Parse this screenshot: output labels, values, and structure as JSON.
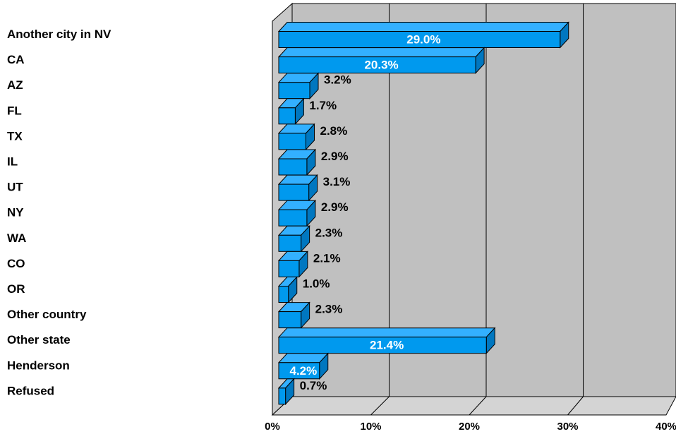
{
  "chart_data": {
    "type": "bar",
    "orientation": "horizontal",
    "three_d": true,
    "categories": [
      "Another city in NV",
      "CA",
      "AZ",
      "FL",
      "TX",
      "IL",
      "UT",
      "NY",
      "WA",
      "CO",
      "OR",
      "Other country",
      "Other state",
      "Henderson",
      "Refused"
    ],
    "values": [
      29.0,
      20.3,
      3.2,
      1.7,
      2.8,
      2.9,
      3.1,
      2.9,
      2.3,
      2.1,
      1.0,
      2.3,
      21.4,
      4.2,
      0.7
    ],
    "data_labels": [
      "29.0%",
      "20.3%",
      "3.2%",
      "1.7%",
      "2.8%",
      "2.9%",
      "3.1%",
      "2.9%",
      "2.3%",
      "2.1%",
      "1.0%",
      "2.3%",
      "21.4%",
      "4.2%",
      "0.7%"
    ],
    "x_ticks": [
      "0%",
      "10%",
      "20%",
      "30%",
      "40%"
    ],
    "xlim": [
      0,
      40
    ],
    "grid": true,
    "legend": "none",
    "colors": {
      "bar": "#0099ee",
      "bar_side": "#0077c0",
      "bar_top": "#33b0ff",
      "wall": "#c0c0c0",
      "floor": "#d4d4d4",
      "inside_label": "#ffffff",
      "outside_label": "#000000"
    }
  }
}
